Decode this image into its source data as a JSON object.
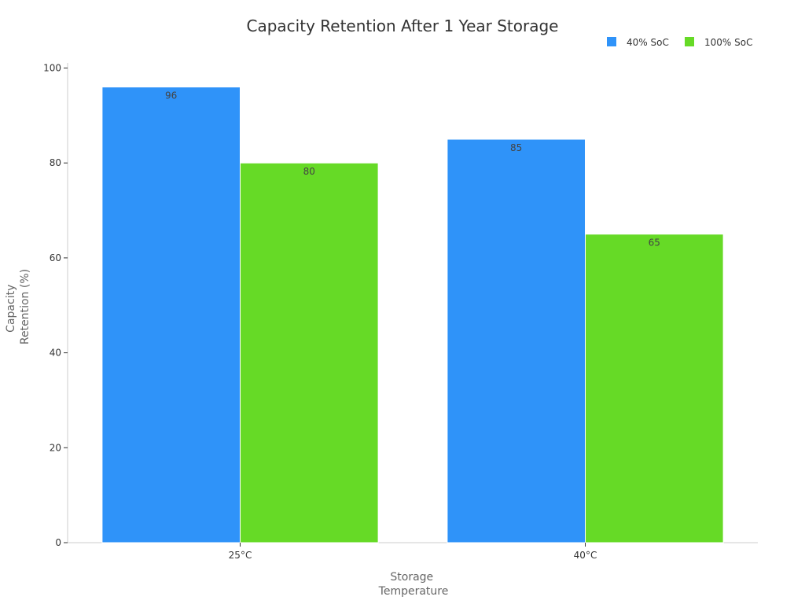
{
  "chart_data": {
    "type": "bar",
    "title": "Capacity Retention After 1 Year Storage",
    "xlabel": [
      "Storage",
      "Temperature"
    ],
    "ylabel": [
      "Capacity",
      "Retention (%)"
    ],
    "categories": [
      "25°C",
      "40°C"
    ],
    "series": [
      {
        "name": "40% SoC",
        "values": [
          96,
          85
        ],
        "color": "#2f93f9"
      },
      {
        "name": "100% SoC",
        "values": [
          80,
          65
        ],
        "color": "#66da26"
      }
    ],
    "ylim": [
      0,
      100
    ],
    "yticks": [
      0,
      20,
      40,
      60,
      80,
      100
    ],
    "legend_position": "top-right",
    "grid": false
  }
}
